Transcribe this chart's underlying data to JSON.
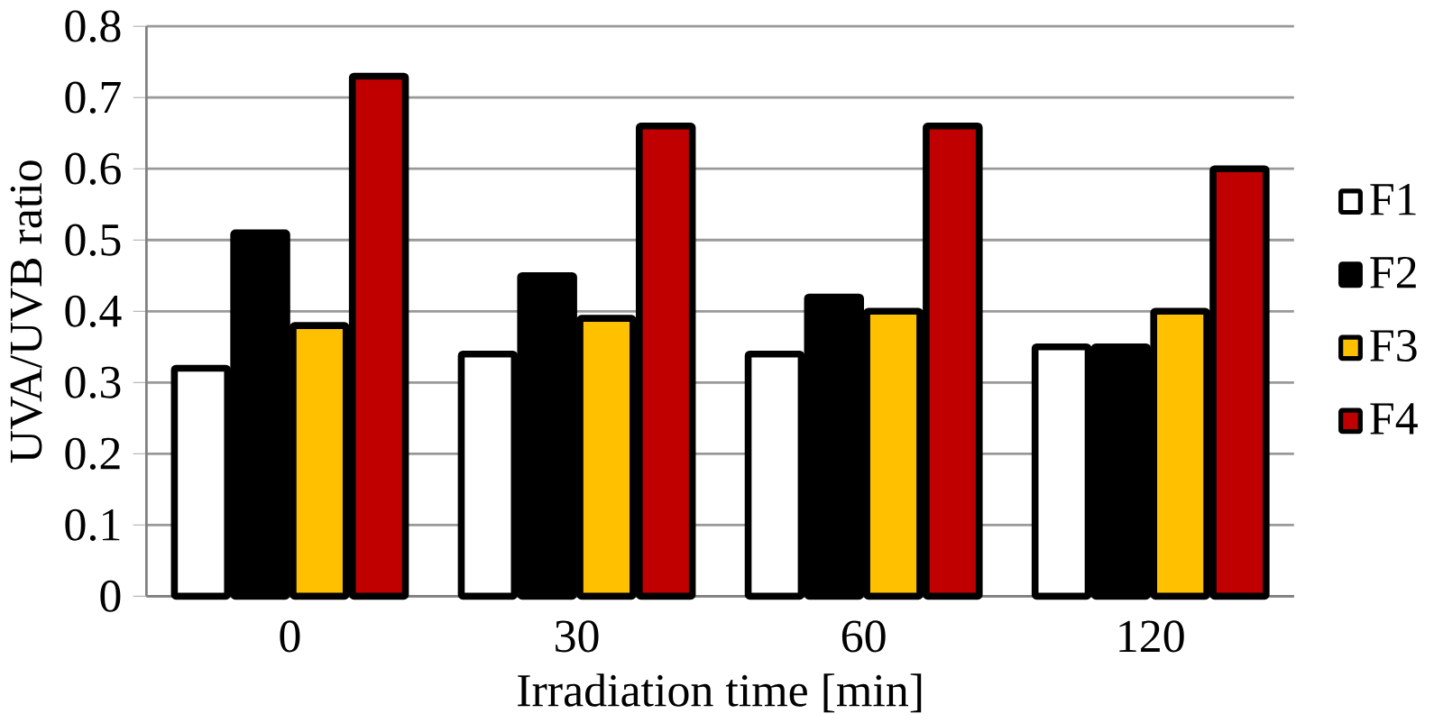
{
  "chart_data": {
    "type": "bar",
    "xlabel": "Irradiation time [min]",
    "ylabel": "UVA/UVB ratio",
    "categories": [
      "0",
      "30",
      "60",
      "120"
    ],
    "series": [
      {
        "name": "F1",
        "color": "#ffffff",
        "values": [
          0.32,
          0.34,
          0.34,
          0.35
        ]
      },
      {
        "name": "F2",
        "color": "#000000",
        "values": [
          0.51,
          0.45,
          0.42,
          0.35
        ]
      },
      {
        "name": "F3",
        "color": "#ffc000",
        "values": [
          0.38,
          0.39,
          0.4,
          0.4
        ]
      },
      {
        "name": "F4",
        "color": "#c00000",
        "values": [
          0.73,
          0.66,
          0.66,
          0.6
        ]
      }
    ],
    "ylim": [
      0,
      0.8
    ],
    "yticks": [
      0,
      0.1,
      0.2,
      0.3,
      0.4,
      0.5,
      0.6,
      0.7,
      0.8
    ],
    "grid": "y",
    "legend": "right"
  }
}
